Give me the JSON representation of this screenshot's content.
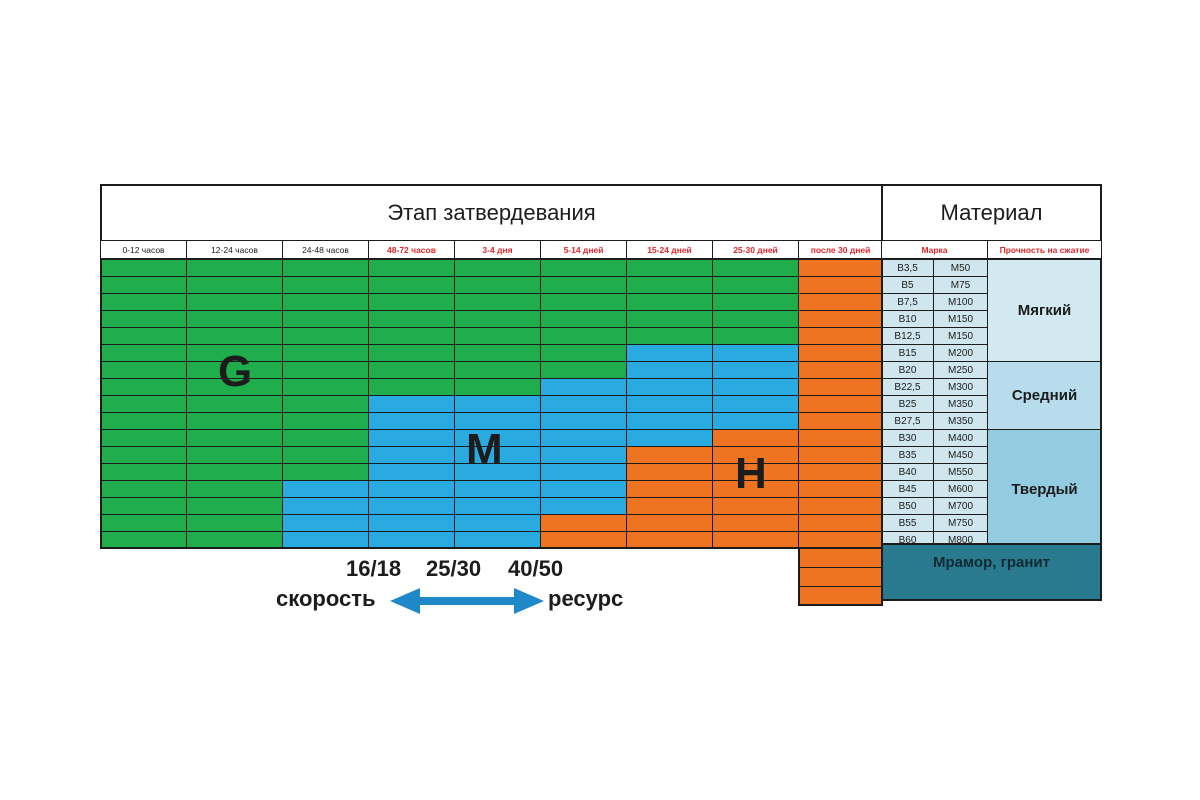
{
  "header": {
    "stage_title": "Этап затвердевания",
    "material_title": "Материал"
  },
  "stages": [
    {
      "label": "0-12 часов",
      "highlight": false
    },
    {
      "label": "12-24 часов",
      "highlight": false
    },
    {
      "label": "24-48 часов",
      "highlight": false
    },
    {
      "label": "48-72 часов",
      "highlight": true
    },
    {
      "label": "3-4 дня",
      "highlight": true
    },
    {
      "label": "5-14 дней",
      "highlight": true
    },
    {
      "label": "15-24 дней",
      "highlight": true
    },
    {
      "label": "25-30 дней",
      "highlight": true
    },
    {
      "label": "после 30 дней",
      "highlight": true
    }
  ],
  "material_columns": {
    "mark": "Марка",
    "strength": "Прочность на сжатие"
  },
  "grades": [
    [
      "B3,5",
      "M50"
    ],
    [
      "B5",
      "M75"
    ],
    [
      "B7,5",
      "M100"
    ],
    [
      "B10",
      "M150"
    ],
    [
      "B12,5",
      "M150"
    ],
    [
      "B15",
      "M200"
    ],
    [
      "B20",
      "M250"
    ],
    [
      "B22,5",
      "M300"
    ],
    [
      "B25",
      "M350"
    ],
    [
      "B27,5",
      "M350"
    ],
    [
      "B30",
      "M400"
    ],
    [
      "B35",
      "M450"
    ],
    [
      "B40",
      "M550"
    ],
    [
      "B45",
      "M600"
    ],
    [
      "B50",
      "M700"
    ],
    [
      "B55",
      "M750"
    ],
    [
      "B60",
      "M800"
    ]
  ],
  "strength_groups": [
    {
      "label": "Мягкий",
      "rows": 6,
      "color": "#d3e9f2"
    },
    {
      "label": "Средний",
      "rows": 4,
      "color": "#b7dceb"
    },
    {
      "label": "Твердый",
      "rows": 7,
      "color": "#93cbe0"
    }
  ],
  "extra_material": {
    "label": "Мрамор, гранит",
    "color": "#2a7a8f"
  },
  "zones": {
    "G": {
      "letter": "G",
      "color": "#1fae4b"
    },
    "M": {
      "letter": "M",
      "color": "#29abe2"
    },
    "H": {
      "letter": "H",
      "color": "#ee7422"
    }
  },
  "zone_map": [
    "GGGGGGGGH",
    "GGGGGGGGH",
    "GGGGGGGGH",
    "GGGGGGGGH",
    "GGGGGGGGH",
    "GGGGGGMMH",
    "GGGGGGMMH",
    "GGGGGMMMH",
    "GGGMMMMMH",
    "GGGMMMMMH",
    "GGGMMMMHH",
    "GGGMMMHHH",
    "GGGMMMHHH",
    "GGMMMMHHH",
    "GGMMMMHHH",
    "GGMMMHHHH",
    "GGMMMHHHH"
  ],
  "extra_rows_zone": "H",
  "extra_rows": 3,
  "legend": {
    "values": [
      "16/18",
      "25/30",
      "40/50"
    ],
    "left": "скорость",
    "right": "ресурс",
    "arrow_color": "#1e88c9"
  }
}
